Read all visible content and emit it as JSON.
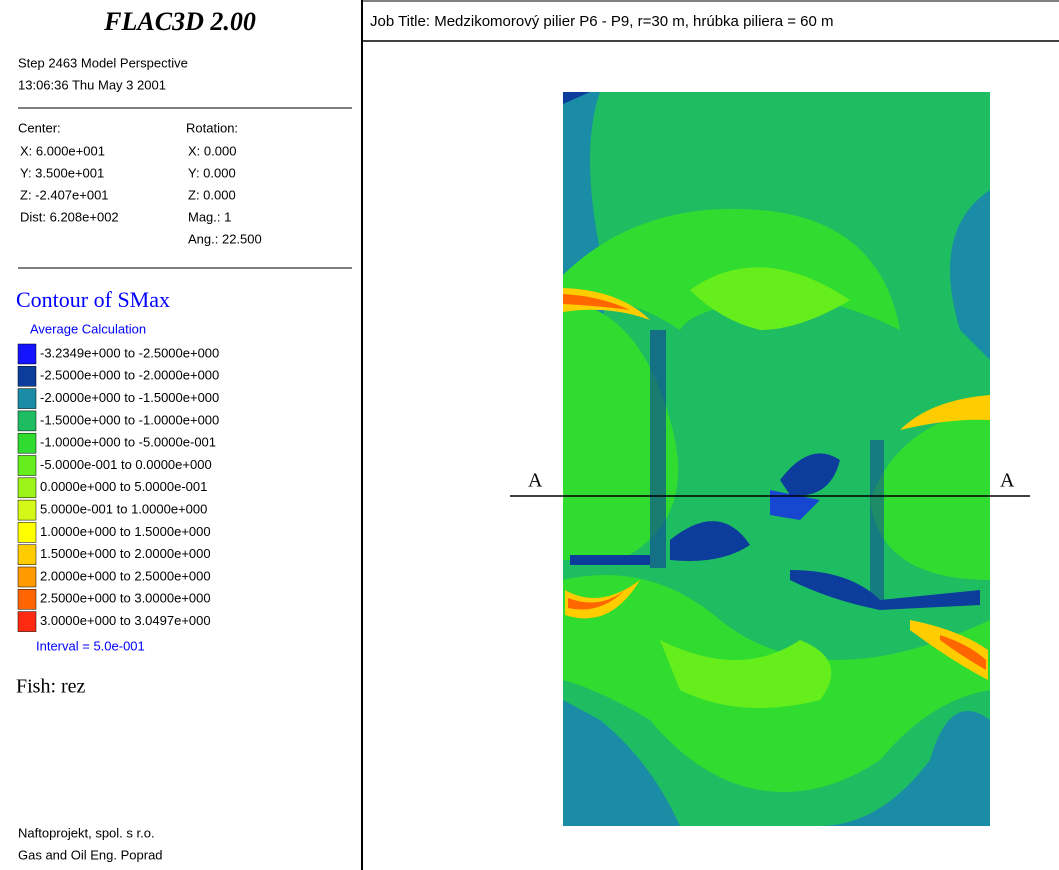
{
  "header": {
    "title": "FLAC3D 2.00",
    "step": "Step 2463 Model Perspective",
    "time": "13:06:36 Thu May 3 2001"
  },
  "view": {
    "center_label": "Center:",
    "rotation_label": "Rotation:",
    "center": [
      "X: 6.000e+001",
      "Y: 3.500e+001",
      "Z: -2.407e+001",
      "Dist: 6.208e+002"
    ],
    "rotation": [
      "X: 0.000",
      "Y: 0.000",
      "Z: 0.000",
      "Mag.: 1",
      "Ang.: 22.500"
    ]
  },
  "legend": {
    "title": "Contour of SMax",
    "subtitle": "Average Calculation",
    "items": [
      {
        "label": "-3.2349e+000 to -2.5000e+000",
        "color": "#1414ff"
      },
      {
        "label": "-2.5000e+000 to -2.0000e+000",
        "color": "#0c3c9c"
      },
      {
        "label": "-2.0000e+000 to -1.5000e+000",
        "color": "#1a8ca6"
      },
      {
        "label": "-1.5000e+000 to -1.0000e+000",
        "color": "#1fbd62"
      },
      {
        "label": "-1.0000e+000 to -5.0000e-001",
        "color": "#30dc30"
      },
      {
        "label": "-5.0000e-001 to 0.0000e+000",
        "color": "#66ee1c"
      },
      {
        "label": "0.0000e+000 to 5.0000e-001",
        "color": "#9cf41a"
      },
      {
        "label": "5.0000e-001 to 1.0000e+000",
        "color": "#d4f818"
      },
      {
        "label": "1.0000e+000 to 1.5000e+000",
        "color": "#ffff00"
      },
      {
        "label": "1.5000e+000 to 2.0000e+000",
        "color": "#ffcc00"
      },
      {
        "label": "2.0000e+000 to 2.5000e+000",
        "color": "#ff9a00"
      },
      {
        "label": "2.5000e+000 to 3.0000e+000",
        "color": "#ff6600"
      },
      {
        "label": "3.0000e+000 to 3.0497e+000",
        "color": "#ff2a12"
      }
    ],
    "interval": "Interval = 5.0e-001"
  },
  "fish": "Fish: rez",
  "footer": [
    "Naftoprojekt, spol. s r.o.",
    "Gas and Oil Eng. Poprad"
  ],
  "job_title": "Job Title: Medzikomorový pilier P6 - P9, r=30 m, hrúbka piliera = 60 m",
  "section_labels": [
    "A",
    "A"
  ]
}
